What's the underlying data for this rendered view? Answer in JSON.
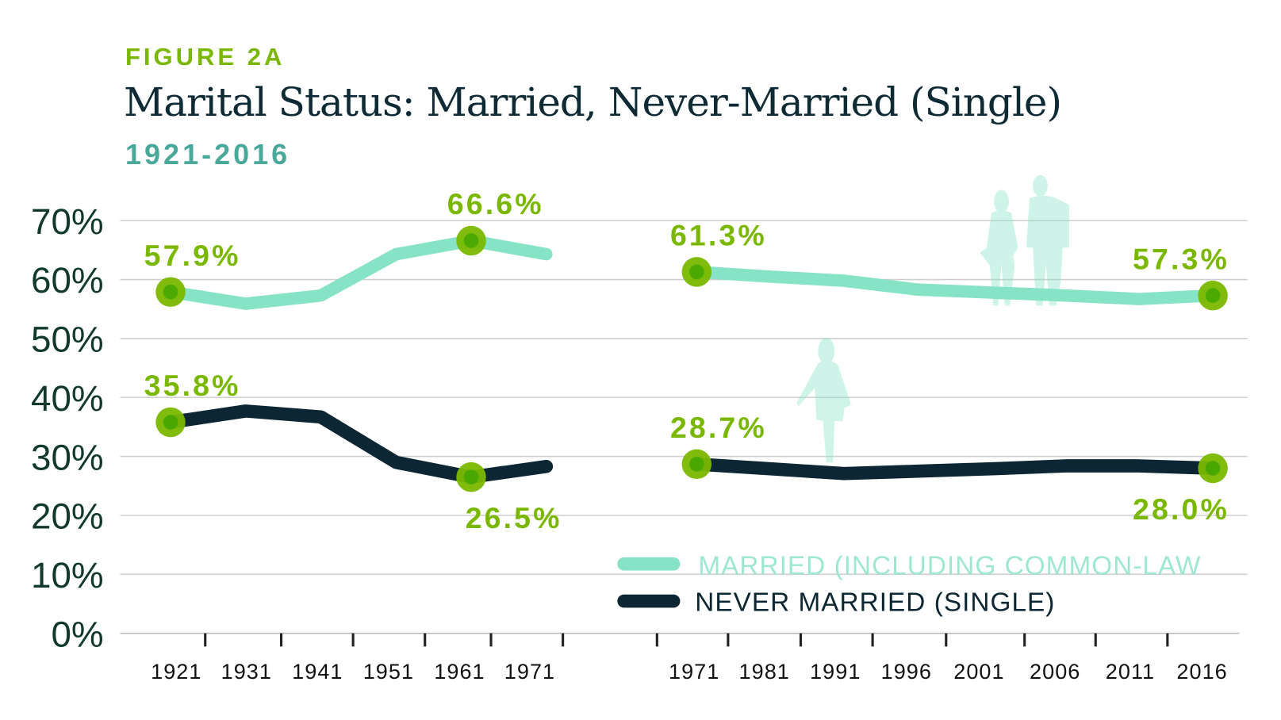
{
  "header": {
    "figure_label": "FIGURE 2A",
    "title": "Marital Status: Married, Never-Married (Single)",
    "subtitle": "1921-2016"
  },
  "colors": {
    "married": "#86e3c6",
    "never_married": "#0c2733",
    "highlight": "#7ab800",
    "grid": "#cfcfcf"
  },
  "chart_data": {
    "type": "line",
    "title": "Marital Status: Married, Never-Married (Single)",
    "ylim": [
      0,
      70
    ],
    "yticks": [
      "0%",
      "10%",
      "20%",
      "30%",
      "40%",
      "50%",
      "60%",
      "70%"
    ],
    "grid": true,
    "legend_placement": "bottom-right",
    "panels": [
      {
        "categories": [
          "1921",
          "1931",
          "1941",
          "1951",
          "1961",
          "1971"
        ],
        "series": [
          {
            "name": "MARRIED (INCLUDING COMMON-LAW",
            "values": [
              57.9,
              55.9,
              57.3,
              64.3,
              66.6,
              64.3
            ]
          },
          {
            "name": "NEVER MARRIED (SINGLE)",
            "values": [
              35.8,
              37.7,
              36.7,
              29.0,
              26.5,
              28.3
            ]
          }
        ],
        "annotations": [
          {
            "series": 0,
            "index": 0,
            "label": "57.9%",
            "pos": "above"
          },
          {
            "series": 0,
            "index": 4,
            "label": "66.6%",
            "pos": "above"
          },
          {
            "series": 1,
            "index": 0,
            "label": "35.8%",
            "pos": "above"
          },
          {
            "series": 1,
            "index": 4,
            "label": "26.5%",
            "pos": "below"
          }
        ]
      },
      {
        "categories": [
          "1971",
          "1981",
          "1991",
          "1996",
          "2001",
          "2006",
          "2011",
          "2016"
        ],
        "series": [
          {
            "name": "MARRIED (INCLUDING COMMON-LAW",
            "values": [
              61.3,
              60.5,
              59.8,
              58.3,
              57.8,
              57.3,
              56.7,
              57.3
            ]
          },
          {
            "name": "NEVER MARRIED (SINGLE)",
            "values": [
              28.7,
              27.9,
              27.1,
              27.5,
              27.9,
              28.4,
              28.4,
              28.0
            ]
          }
        ],
        "annotations": [
          {
            "series": 0,
            "index": 0,
            "label": "61.3%",
            "pos": "above"
          },
          {
            "series": 0,
            "index": 7,
            "label": "57.3%",
            "pos": "above"
          },
          {
            "series": 1,
            "index": 0,
            "label": "28.7%",
            "pos": "above"
          },
          {
            "series": 1,
            "index": 7,
            "label": "28.0%",
            "pos": "below"
          }
        ]
      }
    ],
    "legend": [
      "MARRIED (INCLUDING COMMON-LAW",
      "NEVER MARRIED (SINGLE)"
    ]
  }
}
